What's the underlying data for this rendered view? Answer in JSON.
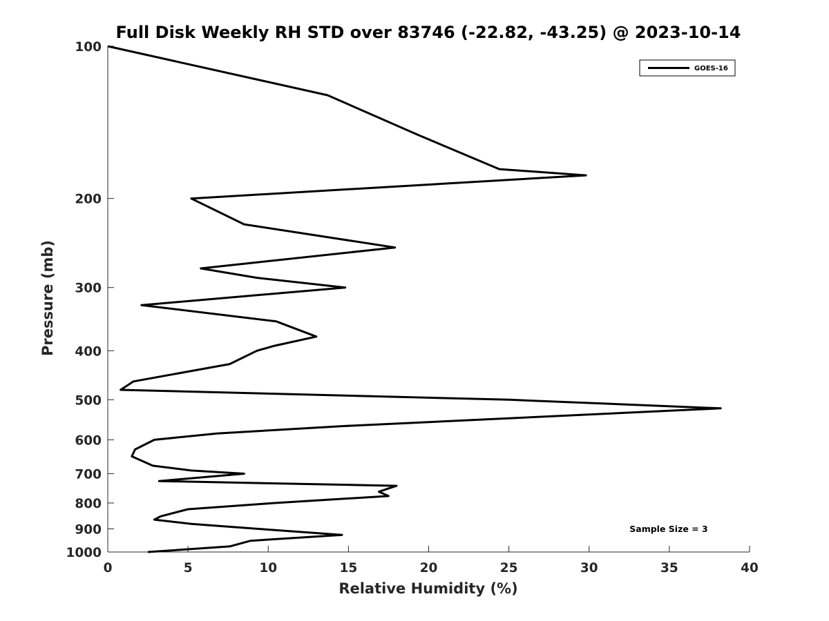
{
  "chart_data": {
    "type": "line",
    "title": "Full Disk Weekly RH STD over 83746 (-22.82, -43.25) @ 2023-10-14",
    "xlabel": "Relative Humidity (%)",
    "ylabel": "Pressure (mb)",
    "xlim": [
      0,
      40
    ],
    "ylim": [
      100,
      1000
    ],
    "yscale": "log",
    "yreversed": true,
    "grid": false,
    "legend_position": "top-right",
    "xticks": [
      "0",
      "5",
      "10",
      "15",
      "20",
      "25",
      "30",
      "35",
      "40"
    ],
    "yticks": [
      "100",
      "200",
      "300",
      "400",
      "500",
      "600",
      "700",
      "800",
      "900",
      "1000"
    ],
    "annotation": "Sample Size = 3",
    "series": [
      {
        "name": "GOES-16",
        "color": "#000000",
        "points": [
          [
            0.0,
            100
          ],
          [
            13.7,
            125
          ],
          [
            19.4,
            150
          ],
          [
            24.4,
            175
          ],
          [
            29.8,
            180
          ],
          [
            5.2,
            200
          ],
          [
            8.5,
            225
          ],
          [
            17.9,
            250
          ],
          [
            5.8,
            275
          ],
          [
            9.3,
            287
          ],
          [
            14.8,
            300
          ],
          [
            2.1,
            325
          ],
          [
            10.5,
            350
          ],
          [
            13.0,
            375
          ],
          [
            10.4,
            391
          ],
          [
            9.3,
            400
          ],
          [
            7.6,
            425
          ],
          [
            1.6,
            460
          ],
          [
            0.8,
            478
          ],
          [
            25.0,
            500
          ],
          [
            38.2,
            520
          ],
          [
            14.5,
            564
          ],
          [
            6.8,
            583
          ],
          [
            2.9,
            600
          ],
          [
            1.7,
            627
          ],
          [
            1.5,
            647
          ],
          [
            2.8,
            675
          ],
          [
            5.2,
            690
          ],
          [
            8.5,
            700
          ],
          [
            3.2,
            724
          ],
          [
            18.0,
            740
          ],
          [
            16.9,
            760
          ],
          [
            17.5,
            775
          ],
          [
            10.4,
            800
          ],
          [
            5.0,
            823
          ],
          [
            3.3,
            850
          ],
          [
            2.9,
            863
          ],
          [
            5.2,
            880
          ],
          [
            9.4,
            900
          ],
          [
            14.6,
            925
          ],
          [
            8.9,
            950
          ],
          [
            7.6,
            975
          ],
          [
            2.5,
            1000
          ]
        ]
      }
    ]
  }
}
